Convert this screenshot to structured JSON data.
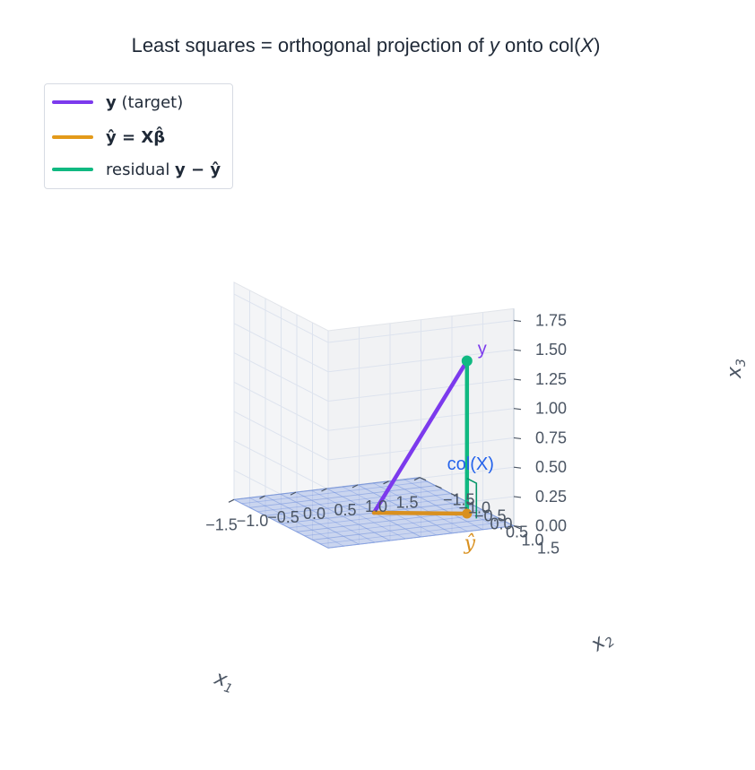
{
  "chart_data": {
    "type": "line",
    "title": "Least squares = orthogonal projection of y onto col(X)",
    "xlabel": "x1",
    "ylabel": "x2",
    "zlabel": "x3",
    "xlim": [
      -1.5,
      1.5
    ],
    "ylim": [
      -1.5,
      1.5
    ],
    "zlim": [
      0.0,
      1.75
    ],
    "x_ticks": [
      "−1.5",
      "−1.0",
      "−0.5",
      "0.0",
      "0.5",
      "1.0",
      "1.5"
    ],
    "y_ticks": [
      "−1.5",
      "−1.0",
      "−0.5",
      "0.0",
      "0.5",
      "1.0",
      "1.5"
    ],
    "z_ticks": [
      "0.00",
      "0.25",
      "0.50",
      "0.75",
      "1.00",
      "1.25",
      "1.50",
      "1.75"
    ],
    "grid": true,
    "legend_position": "top-left",
    "series": [
      {
        "name": "y (target)",
        "color": "#7c3aed",
        "start": [
          0,
          0,
          0
        ],
        "end": [
          1.2,
          0.6,
          1.3
        ]
      },
      {
        "name": "ŷ = Xβ̂",
        "color": "#d9901f",
        "start": [
          0,
          0,
          0
        ],
        "end": [
          1.2,
          0.6,
          0.0
        ]
      },
      {
        "name": "residual y − ŷ",
        "color": "#10b981",
        "start": [
          1.2,
          0.6,
          0.0
        ],
        "end": [
          1.2,
          0.6,
          1.3
        ]
      }
    ],
    "plane": {
      "label": "col(X)",
      "color": "#4a74d9"
    },
    "annotations": [
      {
        "text": "y",
        "color": "#7c3aed"
      },
      {
        "text": "ŷ",
        "color": "#d9901f"
      },
      {
        "text": "col(X)",
        "color": "#2563eb"
      }
    ]
  },
  "legend": {
    "y_label_bold": "y",
    "y_label_rest": " (target)",
    "yhat_label": "ŷ = Xβ̂",
    "resid_label_prefix": "residual ",
    "resid_label_math": "y − ŷ"
  }
}
